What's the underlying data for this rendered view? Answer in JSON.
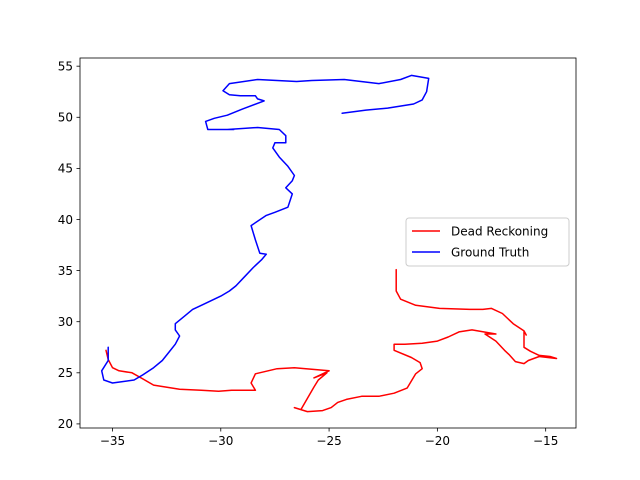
{
  "chart_data": {
    "type": "line",
    "title": "",
    "xlabel": "",
    "ylabel": "",
    "xlim": [
      -36.5,
      -13.6
    ],
    "ylim": [
      19.6,
      55.8
    ],
    "xticks": [
      -35,
      -30,
      -25,
      -20,
      -15
    ],
    "yticks": [
      20,
      25,
      30,
      35,
      40,
      45,
      50,
      55
    ],
    "grid": false,
    "legend": {
      "placement": "center-right",
      "entries": [
        "Dead Reckoning",
        "Ground Truth"
      ]
    },
    "series": [
      {
        "name": "Dead Reckoning",
        "color": "#ff0000",
        "points": [
          [
            -21.9,
            35.1
          ],
          [
            -21.9,
            33.0
          ],
          [
            -21.7,
            32.2
          ],
          [
            -21.0,
            31.6
          ],
          [
            -19.9,
            31.3
          ],
          [
            -18.5,
            31.2
          ],
          [
            -17.9,
            31.2
          ],
          [
            -17.5,
            31.3
          ],
          [
            -17.0,
            30.8
          ],
          [
            -16.5,
            29.8
          ],
          [
            -16.0,
            29.1
          ],
          [
            -15.9,
            28.7
          ],
          [
            -16.0,
            29.1
          ],
          [
            -16.0,
            27.5
          ],
          [
            -15.7,
            27.1
          ],
          [
            -15.3,
            26.7
          ],
          [
            -14.8,
            26.6
          ],
          [
            -14.5,
            26.4
          ],
          [
            -15.3,
            26.6
          ],
          [
            -15.8,
            26.2
          ],
          [
            -16.0,
            25.9
          ],
          [
            -16.4,
            26.1
          ],
          [
            -16.7,
            26.8
          ],
          [
            -16.9,
            27.2
          ],
          [
            -17.3,
            28.1
          ],
          [
            -17.8,
            28.8
          ],
          [
            -17.3,
            28.8
          ],
          [
            -17.6,
            28.9
          ],
          [
            -18.4,
            29.2
          ],
          [
            -19.0,
            29.0
          ],
          [
            -19.5,
            28.5
          ],
          [
            -20.0,
            28.1
          ],
          [
            -20.7,
            27.9
          ],
          [
            -21.5,
            27.8
          ],
          [
            -22.0,
            27.8
          ],
          [
            -22.0,
            27.2
          ],
          [
            -21.2,
            26.5
          ],
          [
            -20.8,
            26.0
          ],
          [
            -20.7,
            25.4
          ],
          [
            -21.0,
            24.9
          ],
          [
            -21.4,
            23.5
          ],
          [
            -22.0,
            23.0
          ],
          [
            -22.7,
            22.7
          ],
          [
            -23.5,
            22.7
          ],
          [
            -24.2,
            22.4
          ],
          [
            -24.6,
            22.1
          ],
          [
            -24.9,
            21.6
          ],
          [
            -25.3,
            21.3
          ],
          [
            -26.0,
            21.2
          ],
          [
            -26.6,
            21.6
          ],
          [
            -26.3,
            21.4
          ],
          [
            -26.0,
            22.5
          ],
          [
            -25.7,
            23.6
          ],
          [
            -25.5,
            24.3
          ],
          [
            -25.1,
            25.0
          ],
          [
            -25.7,
            24.5
          ],
          [
            -25.0,
            25.2
          ],
          [
            -26.6,
            25.5
          ],
          [
            -27.4,
            25.4
          ],
          [
            -28.4,
            24.9
          ],
          [
            -28.6,
            24.0
          ],
          [
            -28.4,
            23.3
          ],
          [
            -29.5,
            23.3
          ],
          [
            -30.1,
            23.2
          ],
          [
            -30.9,
            23.3
          ],
          [
            -31.9,
            23.4
          ],
          [
            -33.1,
            23.8
          ],
          [
            -33.6,
            24.4
          ],
          [
            -34.1,
            25.0
          ],
          [
            -34.7,
            25.2
          ],
          [
            -35.0,
            25.5
          ],
          [
            -35.2,
            26.3
          ],
          [
            -35.3,
            27.2
          ]
        ]
      },
      {
        "name": "Ground Truth",
        "color": "#0000ff",
        "points": [
          [
            -35.2,
            27.5
          ],
          [
            -35.2,
            26.2
          ],
          [
            -35.5,
            25.2
          ],
          [
            -35.4,
            24.3
          ],
          [
            -35.0,
            24.0
          ],
          [
            -34.0,
            24.3
          ],
          [
            -33.6,
            24.8
          ],
          [
            -33.1,
            25.5
          ],
          [
            -32.7,
            26.2
          ],
          [
            -32.4,
            27.0
          ],
          [
            -32.1,
            27.8
          ],
          [
            -31.9,
            28.6
          ],
          [
            -32.1,
            29.2
          ],
          [
            -32.1,
            29.8
          ],
          [
            -31.7,
            30.5
          ],
          [
            -31.3,
            31.2
          ],
          [
            -30.8,
            31.7
          ],
          [
            -30.0,
            32.5
          ],
          [
            -29.6,
            33.0
          ],
          [
            -29.3,
            33.5
          ],
          [
            -28.9,
            34.4
          ],
          [
            -28.5,
            35.3
          ],
          [
            -28.1,
            36.1
          ],
          [
            -27.9,
            36.6
          ],
          [
            -28.2,
            36.7
          ],
          [
            -28.4,
            38.0
          ],
          [
            -28.6,
            39.4
          ],
          [
            -27.9,
            40.4
          ],
          [
            -27.5,
            40.7
          ],
          [
            -26.9,
            41.2
          ],
          [
            -26.7,
            42.5
          ],
          [
            -27.0,
            43.1
          ],
          [
            -26.7,
            43.8
          ],
          [
            -26.6,
            44.3
          ],
          [
            -26.9,
            45.2
          ],
          [
            -27.3,
            46.1
          ],
          [
            -27.6,
            47.0
          ],
          [
            -27.5,
            47.5
          ],
          [
            -27.0,
            47.5
          ],
          [
            -27.0,
            48.2
          ],
          [
            -27.3,
            48.8
          ],
          [
            -28.3,
            49.0
          ],
          [
            -29.7,
            48.8
          ],
          [
            -29.4,
            48.8
          ],
          [
            -30.6,
            48.8
          ],
          [
            -30.7,
            49.6
          ],
          [
            -30.3,
            49.9
          ],
          [
            -29.7,
            50.2
          ],
          [
            -29.0,
            50.8
          ],
          [
            -28.0,
            51.6
          ],
          [
            -28.3,
            51.8
          ],
          [
            -28.4,
            52.1
          ],
          [
            -29.1,
            52.1
          ],
          [
            -29.6,
            52.2
          ],
          [
            -29.9,
            52.6
          ],
          [
            -29.6,
            53.3
          ],
          [
            -28.3,
            53.7
          ],
          [
            -26.5,
            53.5
          ],
          [
            -25.8,
            53.6
          ],
          [
            -24.3,
            53.7
          ],
          [
            -22.7,
            53.3
          ],
          [
            -21.7,
            53.7
          ],
          [
            -21.2,
            54.1
          ],
          [
            -20.4,
            53.8
          ],
          [
            -20.5,
            52.5
          ],
          [
            -20.7,
            51.7
          ],
          [
            -21.1,
            51.3
          ],
          [
            -22.3,
            50.9
          ],
          [
            -23.3,
            50.7
          ],
          [
            -24.4,
            50.4
          ]
        ]
      }
    ]
  }
}
